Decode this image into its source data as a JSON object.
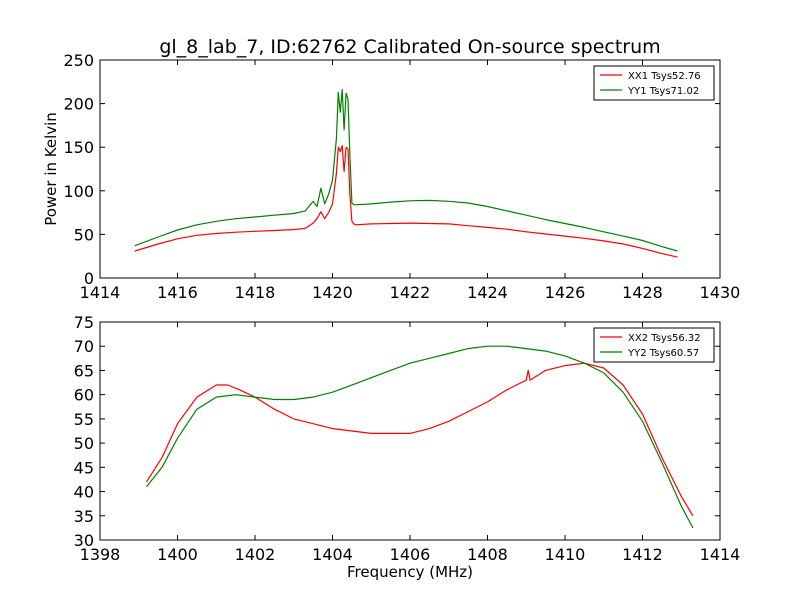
{
  "chart_data": [
    {
      "type": "line",
      "title": "gl_8_lab_7, ID:62762 Calibrated On-source spectrum",
      "xlabel": "",
      "ylabel": "Power in Kelvin",
      "xlim": [
        1414,
        1430
      ],
      "ylim": [
        0,
        250
      ],
      "xticks": [
        "1414",
        "1416",
        "1418",
        "1420",
        "1422",
        "1424",
        "1426",
        "1428",
        "1430"
      ],
      "yticks": [
        "0",
        "50",
        "100",
        "150",
        "200",
        "250"
      ],
      "grid": false,
      "legend_position": "top-right",
      "series": [
        {
          "name": "XX1 Tsys52.76",
          "color": "#ff0000",
          "x": [
            1414.9,
            1415.5,
            1416,
            1416.5,
            1417,
            1417.5,
            1418,
            1418.5,
            1419,
            1419.3,
            1419.5,
            1419.6,
            1419.7,
            1419.8,
            1419.9,
            1420.0,
            1420.1,
            1420.15,
            1420.2,
            1420.25,
            1420.3,
            1420.35,
            1420.4,
            1420.45,
            1420.5,
            1420.55,
            1420.6,
            1421,
            1421.5,
            1422,
            1422.5,
            1423,
            1423.5,
            1424,
            1424.5,
            1425,
            1425.5,
            1426,
            1426.5,
            1427,
            1427.5,
            1428,
            1428.5,
            1428.9
          ],
          "values": [
            31,
            39,
            45,
            49,
            51,
            52.5,
            53.5,
            54.5,
            55.5,
            57,
            63,
            68,
            76,
            68,
            75,
            85,
            120,
            150,
            145,
            152,
            122,
            150,
            148,
            96,
            65,
            62,
            61,
            62,
            62.5,
            63,
            62.5,
            62,
            60,
            58,
            56,
            53,
            50.5,
            48,
            45.5,
            42.5,
            39,
            34,
            28,
            24
          ]
        },
        {
          "name": "YY1 Tsys71.02",
          "color": "#008000",
          "x": [
            1414.9,
            1415.5,
            1416,
            1416.5,
            1417,
            1417.5,
            1418,
            1418.5,
            1419,
            1419.3,
            1419.5,
            1419.6,
            1419.7,
            1419.8,
            1419.9,
            1420.0,
            1420.1,
            1420.15,
            1420.2,
            1420.25,
            1420.3,
            1420.35,
            1420.4,
            1420.45,
            1420.5,
            1420.55,
            1420.6,
            1421,
            1421.5,
            1422,
            1422.5,
            1423,
            1423.5,
            1424,
            1424.5,
            1425,
            1425.5,
            1426,
            1426.5,
            1427,
            1427.5,
            1428,
            1428.5,
            1428.9
          ],
          "values": [
            37,
            47,
            55,
            61,
            65,
            68,
            70,
            72,
            74,
            77,
            88,
            82,
            103,
            85,
            96,
            112,
            160,
            213,
            190,
            216,
            170,
            212,
            205,
            140,
            86,
            84,
            84,
            85,
            87,
            88.5,
            89,
            88,
            86,
            82,
            77,
            72,
            67,
            62.5,
            58,
            53,
            48,
            43,
            36,
            31
          ]
        }
      ]
    },
    {
      "type": "line",
      "title": "",
      "xlabel": "Frequency (MHz)",
      "ylabel": "",
      "xlim": [
        1398,
        1414
      ],
      "ylim": [
        30,
        75
      ],
      "xticks": [
        "1398",
        "1400",
        "1402",
        "1404",
        "1406",
        "1408",
        "1410",
        "1412",
        "1414"
      ],
      "yticks": [
        "30",
        "35",
        "40",
        "45",
        "50",
        "55",
        "60",
        "65",
        "70",
        "75"
      ],
      "grid": false,
      "legend_position": "top-right",
      "series": [
        {
          "name": "XX2 Tsys56.32",
          "color": "#ff0000",
          "x": [
            1399.2,
            1399.6,
            1400,
            1400.5,
            1401,
            1401.3,
            1401.6,
            1402,
            1402.5,
            1403,
            1403.5,
            1404,
            1404.5,
            1405,
            1405.5,
            1406,
            1406.5,
            1407,
            1407.5,
            1408,
            1408.5,
            1409,
            1409.05,
            1409.1,
            1409.5,
            1410,
            1410.5,
            1411,
            1411.5,
            1412,
            1412.5,
            1413,
            1413.3
          ],
          "values": [
            42,
            47,
            54,
            59.5,
            62,
            62,
            61,
            59.5,
            57,
            55,
            54,
            53,
            52.5,
            52,
            52,
            52,
            53,
            54.5,
            56.5,
            58.5,
            61,
            63,
            65,
            63,
            65,
            66,
            66.5,
            65.5,
            62,
            56,
            47,
            39,
            35
          ]
        },
        {
          "name": "YY2 Tsys60.57",
          "color": "#008000",
          "x": [
            1399.2,
            1399.6,
            1400,
            1400.5,
            1401,
            1401.5,
            1402,
            1402.5,
            1403,
            1403.5,
            1404,
            1404.5,
            1405,
            1405.5,
            1406,
            1406.5,
            1407,
            1407.5,
            1408,
            1408.5,
            1409,
            1409.5,
            1410,
            1410.5,
            1411,
            1411.5,
            1412,
            1412.5,
            1413,
            1413.3
          ],
          "values": [
            41,
            45,
            51,
            57,
            59.5,
            60,
            59.5,
            59,
            59,
            59.5,
            60.5,
            62,
            63.5,
            65,
            66.5,
            67.5,
            68.5,
            69.5,
            70,
            70,
            69.5,
            69,
            68,
            66.5,
            64.5,
            60.5,
            54.5,
            46,
            37,
            32.5
          ]
        }
      ]
    }
  ]
}
